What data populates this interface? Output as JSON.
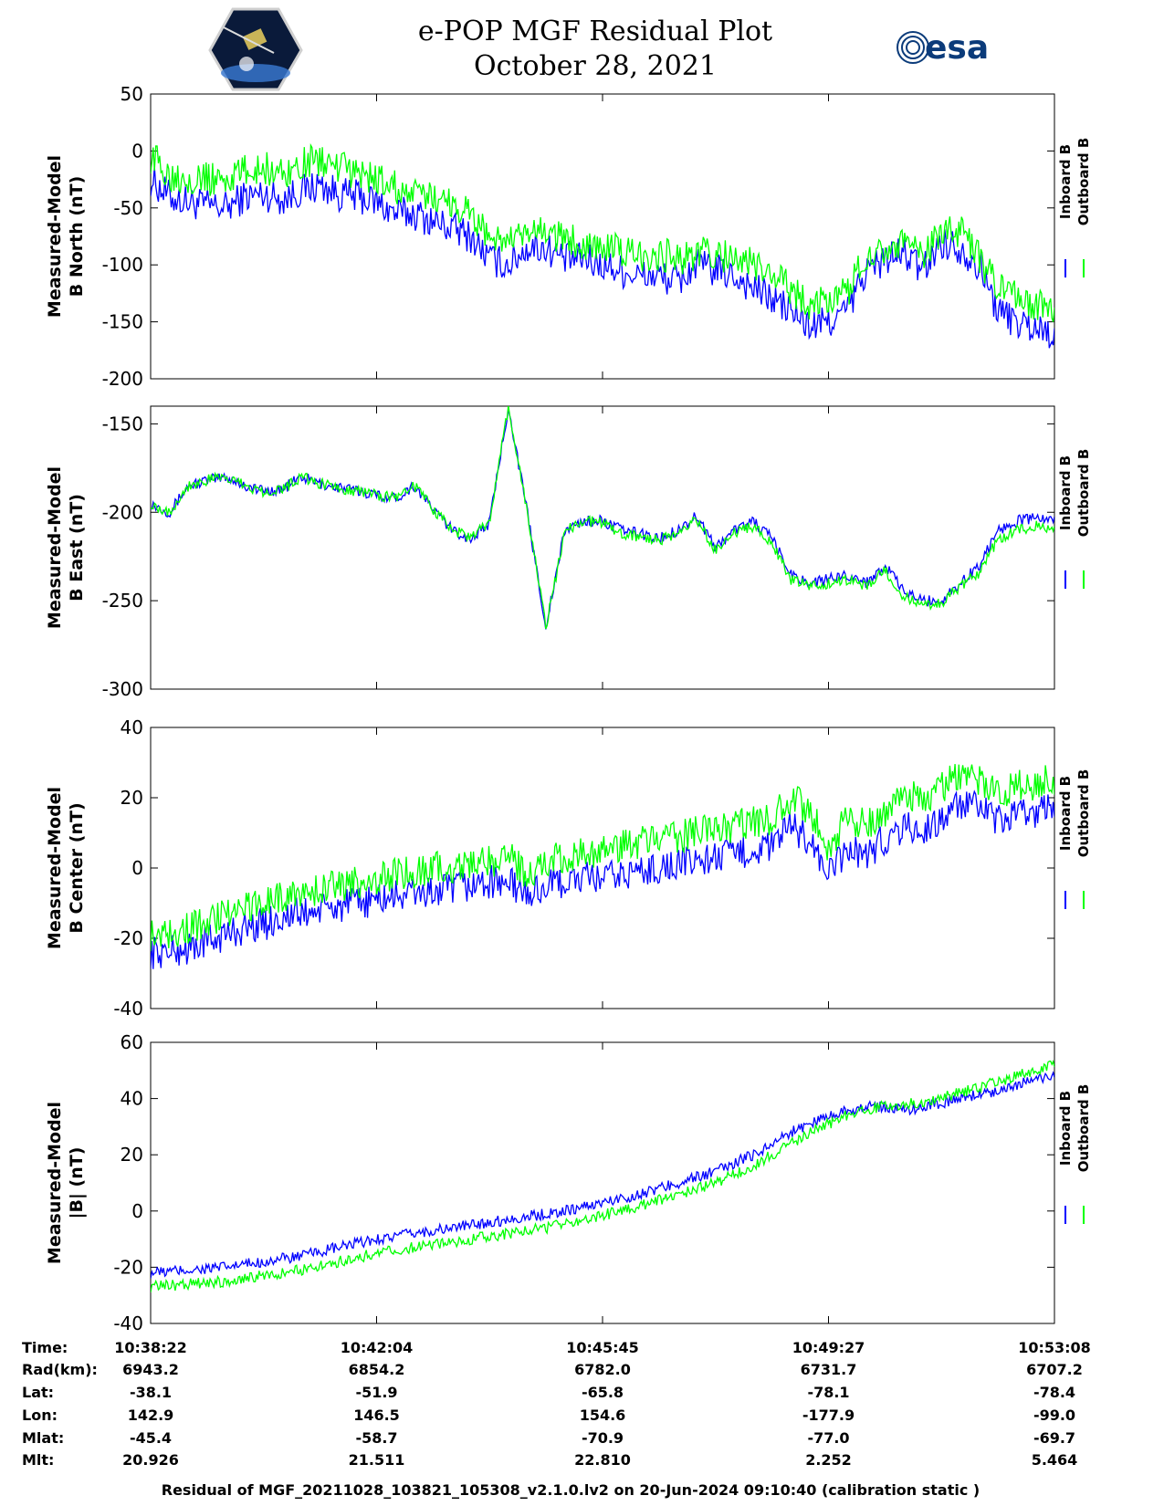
{
  "title": "e-POP MGF Residual Plot",
  "date": "October 28, 2021",
  "esa_logo_text": "esa",
  "colors": {
    "inboard": "#0000ff",
    "outboard": "#00ff00",
    "esa": "#0b3b7a"
  },
  "chart_data": [
    {
      "type": "line",
      "ylabel_line1": "Measured-Model",
      "ylabel_line2": "B North (nT)",
      "ylim": [
        -200,
        50
      ],
      "yticks": [
        -200,
        -150,
        -100,
        -50,
        0,
        50
      ],
      "series": [
        {
          "name": "Inboard B",
          "color": "#0000ff",
          "values": [
            -25,
            -40,
            -45,
            -48,
            -50,
            -40,
            -38,
            -42,
            -35,
            -30,
            -38,
            -40,
            -45,
            -55,
            -55,
            -62,
            -68,
            -75,
            -95,
            -100,
            -85,
            -85,
            -95,
            -95,
            -100,
            -105,
            -110,
            -110,
            -115,
            -100,
            -105,
            -110,
            -120,
            -130,
            -140,
            -155,
            -150,
            -140,
            -105,
            -95,
            -90,
            -105,
            -80,
            -85,
            -100,
            -140,
            -150,
            -155,
            -160
          ]
        },
        {
          "name": "Outboard B",
          "color": "#00ff00",
          "values": [
            -5,
            -20,
            -22,
            -25,
            -25,
            -18,
            -15,
            -20,
            -12,
            -8,
            -15,
            -20,
            -25,
            -32,
            -40,
            -40,
            -45,
            -55,
            -75,
            -80,
            -75,
            -70,
            -78,
            -80,
            -85,
            -88,
            -92,
            -90,
            -95,
            -90,
            -90,
            -95,
            -100,
            -110,
            -120,
            -135,
            -130,
            -125,
            -90,
            -85,
            -80,
            -95,
            -70,
            -70,
            -95,
            -120,
            -130,
            -135,
            -140
          ]
        }
      ]
    },
    {
      "type": "line",
      "ylabel_line1": "Measured-Model",
      "ylabel_line2": "B East (nT)",
      "ylim": [
        -300,
        -140
      ],
      "yticks": [
        -300,
        -250,
        -200,
        -150
      ],
      "series": [
        {
          "name": "Inboard B",
          "color": "#0000ff",
          "values": [
            -195,
            -200,
            -185,
            -182,
            -180,
            -185,
            -188,
            -187,
            -180,
            -184,
            -186,
            -188,
            -190,
            -192,
            -185,
            -198,
            -210,
            -215,
            -206,
            -140,
            -200,
            -265,
            -210,
            -205,
            -205,
            -210,
            -212,
            -215,
            -210,
            -202,
            -220,
            -210,
            -205,
            -215,
            -235,
            -240,
            -238,
            -235,
            -240,
            -230,
            -245,
            -250,
            -250,
            -240,
            -230,
            -210,
            -205,
            -203,
            -205
          ]
        },
        {
          "name": "Outboard B",
          "color": "#00ff00",
          "values": [
            -195,
            -200,
            -185,
            -182,
            -180,
            -185,
            -188,
            -187,
            -180,
            -184,
            -186,
            -188,
            -190,
            -192,
            -185,
            -198,
            -210,
            -214,
            -206,
            -140,
            -200,
            -265,
            -210,
            -205,
            -206,
            -212,
            -214,
            -216,
            -212,
            -204,
            -222,
            -212,
            -208,
            -218,
            -238,
            -242,
            -240,
            -238,
            -242,
            -233,
            -248,
            -252,
            -252,
            -242,
            -234,
            -215,
            -210,
            -208,
            -210
          ]
        }
      ]
    },
    {
      "type": "line",
      "ylabel_line1": "Measured-Model",
      "ylabel_line2": "B Center (nT)",
      "ylim": [
        -40,
        40
      ],
      "yticks": [
        -40,
        -20,
        0,
        20,
        40
      ],
      "series": [
        {
          "name": "Inboard B",
          "color": "#0000ff",
          "values": [
            -24,
            -24,
            -23,
            -21,
            -19,
            -17,
            -16,
            -14,
            -13,
            -12,
            -11,
            -10,
            -9,
            -8,
            -7,
            -7,
            -6,
            -5,
            -4,
            -4,
            -8,
            -5,
            -4,
            -3,
            -3,
            -2,
            -1,
            0,
            1,
            2,
            3,
            4,
            5,
            6,
            12,
            8,
            -2,
            5,
            4,
            8,
            12,
            10,
            14,
            18,
            17,
            13,
            15,
            16,
            18
          ]
        },
        {
          "name": "Outboard B",
          "color": "#00ff00",
          "values": [
            -19,
            -18,
            -17,
            -15,
            -13,
            -11,
            -10,
            -8,
            -7,
            -6,
            -5,
            -4,
            -3,
            -2,
            -1,
            0,
            0,
            1,
            2,
            3,
            -2,
            2,
            3,
            4,
            5,
            6,
            7,
            8,
            9,
            10,
            11,
            12,
            13,
            14,
            20,
            16,
            6,
            14,
            12,
            16,
            21,
            19,
            23,
            26,
            25,
            21,
            23,
            24,
            25
          ]
        }
      ]
    },
    {
      "type": "line",
      "ylabel_line1": "Measured-Model",
      "ylabel_line2": "|B| (nT)",
      "ylim": [
        -40,
        60
      ],
      "yticks": [
        -40,
        -20,
        0,
        20,
        40,
        60
      ],
      "series": [
        {
          "name": "Inboard B",
          "color": "#0000ff",
          "values": [
            -22,
            -21.5,
            -21,
            -20.5,
            -20,
            -19,
            -18,
            -17,
            -16,
            -14.5,
            -13,
            -11.5,
            -10,
            -9,
            -8,
            -7,
            -6,
            -5,
            -4,
            -3,
            -2,
            -1,
            0,
            1.5,
            3,
            4.5,
            6,
            8,
            10,
            12,
            14,
            17,
            20,
            24,
            28,
            31,
            34,
            36,
            37,
            37,
            36,
            37,
            38.5,
            40,
            41.5,
            43,
            45,
            46.5,
            48
          ]
        },
        {
          "name": "Outboard B",
          "color": "#00ff00",
          "values": [
            -27,
            -26.5,
            -26,
            -25.5,
            -25,
            -24,
            -23,
            -22,
            -21,
            -19.5,
            -18,
            -16.5,
            -15,
            -14,
            -13,
            -12,
            -11,
            -10,
            -9,
            -8,
            -7,
            -6,
            -4.5,
            -3,
            -1.5,
            0,
            2,
            4,
            6,
            8,
            10,
            13,
            16,
            20,
            24,
            28,
            31,
            34,
            36,
            37.5,
            38,
            39,
            40.5,
            42,
            44,
            46,
            48,
            50,
            52
          ]
        }
      ]
    }
  ],
  "table": {
    "row_labels": [
      "Time:",
      "Rad(km):",
      "Lat:",
      "Lon:",
      "Mlat:",
      "Mlt:"
    ],
    "columns": [
      [
        "10:38:22",
        "6943.2",
        "-38.1",
        "142.9",
        "-45.4",
        "20.926"
      ],
      [
        "10:42:04",
        "6854.2",
        "-51.9",
        "146.5",
        "-58.7",
        "21.511"
      ],
      [
        "10:45:45",
        "6782.0",
        "-65.8",
        "154.6",
        "-70.9",
        "22.810"
      ],
      [
        "10:49:27",
        "6731.7",
        "-78.1",
        "-177.9",
        "-77.0",
        "2.252"
      ],
      [
        "10:53:08",
        "6707.2",
        "-78.4",
        "-99.0",
        "-69.7",
        "5.464"
      ]
    ]
  },
  "footer": "Residual of MGF_20211028_103821_105308_v2.1.0.lv2 on 20-Jun-2024 09:10:40 (calibration static )"
}
